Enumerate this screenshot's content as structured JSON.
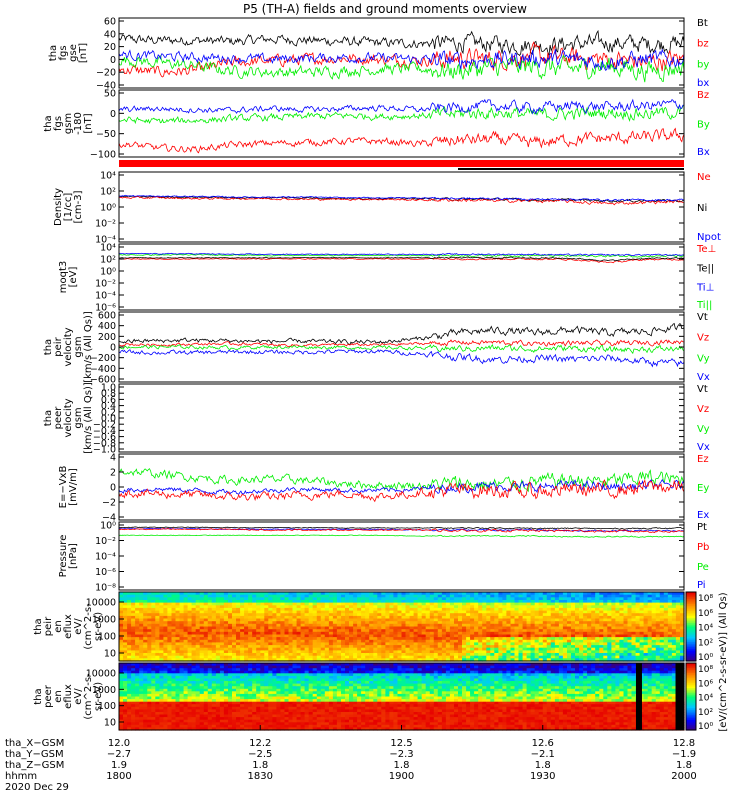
{
  "title": "P5 (TH-A) fields and ground moments overview",
  "colors": {
    "black": "#000000",
    "red": "#ff0000",
    "green": "#00ee00",
    "blue": "#0000ff"
  },
  "chart_data": [
    {
      "type": "line",
      "ylabel": [
        "tha",
        "fgs",
        "gse",
        "[nT]"
      ],
      "yticks": [
        "60",
        "40",
        "20",
        "0",
        "−20",
        "−40"
      ],
      "ylim": [
        -45,
        65
      ],
      "legend": [
        {
          "name": "Bt",
          "color": "#000000"
        },
        {
          "name": "bz",
          "color": "#ff0000"
        },
        {
          "name": "by",
          "color": "#00ee00"
        },
        {
          "name": "bx",
          "color": "#0000ff"
        }
      ],
      "series": [
        {
          "name": "Bt",
          "color": "#000000",
          "base": [
            32,
            30,
            30,
            28,
            32,
            30,
            28,
            26,
            25,
            26,
            24,
            22,
            24,
            26,
            24,
            25
          ],
          "noise": 12
        },
        {
          "name": "bz",
          "color": "#ff0000",
          "base": [
            -15,
            -20,
            -18,
            -5,
            -2,
            0,
            2,
            0,
            -2,
            2,
            0,
            5,
            2,
            0,
            -5,
            0
          ],
          "noise": 14
        },
        {
          "name": "by",
          "color": "#00ee00",
          "base": [
            0,
            -5,
            -10,
            -18,
            -20,
            -20,
            -18,
            -15,
            -15,
            -18,
            -12,
            -12,
            -15,
            -10,
            -18,
            -12
          ],
          "noise": 14
        },
        {
          "name": "bx",
          "color": "#0000ff",
          "base": [
            8,
            5,
            3,
            2,
            0,
            2,
            3,
            2,
            0,
            -2,
            0,
            2,
            0,
            -3,
            0,
            0
          ],
          "noise": 12
        }
      ]
    },
    {
      "type": "line",
      "ylabel": [
        "tha",
        "fgs",
        "gsm",
        "-180",
        "[nT]"
      ],
      "yticks": [
        "50",
        "0",
        "−50",
        "−100"
      ],
      "ylim": [
        -115,
        55
      ],
      "legend": [
        {
          "name": "Bz",
          "color": "#ff0000"
        },
        {
          "name": "By",
          "color": "#00ee00"
        },
        {
          "name": "Bx",
          "color": "#0000ff"
        }
      ],
      "series": [
        {
          "name": "Bz",
          "color": "#ff0000",
          "base": [
            -80,
            -92,
            -95,
            -85,
            -80,
            -78,
            -75,
            -75,
            -82,
            -72,
            -70,
            -80,
            -70,
            -68,
            -65,
            -60
          ],
          "noise": 14
        },
        {
          "name": "By",
          "color": "#00ee00",
          "base": [
            -20,
            -25,
            -22,
            -18,
            -15,
            -12,
            -10,
            -12,
            -10,
            -5,
            -2,
            -8,
            -5,
            -2,
            -5,
            0
          ],
          "noise": 14
        },
        {
          "name": "Bx",
          "color": "#0000ff",
          "base": [
            5,
            8,
            5,
            3,
            8,
            5,
            8,
            10,
            5,
            12,
            15,
            10,
            15,
            12,
            15,
            20
          ],
          "noise": 12
        }
      ]
    },
    {
      "type": "line",
      "ylabel": [
        "Density",
        "[1/cc]",
        "[cm-3]"
      ],
      "yticks": [
        "10⁴",
        "10²",
        "10⁰",
        "10⁻²",
        "10⁻⁴"
      ],
      "ylim": [
        -5,
        4.5
      ],
      "legend": [
        {
          "name": "Ne",
          "color": "#ff0000"
        },
        {
          "name": "Ni",
          "color": "#000000"
        },
        {
          "name": "Npot",
          "color": "#0000ff"
        }
      ],
      "series": [
        {
          "name": "Ni",
          "color": "#000000",
          "base": [
            1.2,
            1.1,
            1.1,
            1.0,
            1.0,
            1.0,
            0.9,
            0.9,
            0.9,
            0.8,
            0.8,
            0.7,
            0.7,
            0.6,
            0.6,
            0.6
          ],
          "noise": 0.15
        },
        {
          "name": "Ne",
          "color": "#ff0000",
          "base": [
            1.0,
            1.0,
            0.9,
            0.9,
            0.9,
            0.8,
            0.8,
            0.8,
            0.7,
            0.7,
            0.6,
            0.6,
            0.5,
            0.2,
            0.4,
            0.5
          ],
          "noise": 0.2
        },
        {
          "name": "Npot",
          "color": "#0000ff",
          "base": [
            1.3,
            1.2,
            1.2,
            1.1,
            1.1,
            1.1,
            1.0,
            1.0,
            1.0,
            0.9,
            0.9,
            0.8,
            0.8,
            0.7,
            0.7,
            0.7
          ],
          "noise": 0.12
        }
      ]
    },
    {
      "type": "line",
      "ylabel": [
        "moqt3",
        "[eV]"
      ],
      "yticks": [
        "10⁴",
        "10²",
        "10⁰",
        "10⁻²",
        "10⁻⁴",
        "10⁻⁶"
      ],
      "ylim": [
        -7,
        4.5
      ],
      "legend": [
        {
          "name": "Te⊥",
          "color": "#ff0000"
        },
        {
          "name": "Te||",
          "color": "#000000"
        },
        {
          "name": "Ti⊥",
          "color": "#0000ff"
        },
        {
          "name": "Ti||",
          "color": "#00ee00"
        }
      ],
      "series": [
        {
          "name": "Ti||",
          "color": "#00ee00",
          "base": [
            2.6,
            2.6,
            2.6,
            2.6,
            2.5,
            2.5,
            2.5,
            2.5,
            2.5,
            2.5,
            2.5,
            2.5,
            2.4,
            2.4,
            2.4,
            2.4
          ],
          "noise": 0.15
        },
        {
          "name": "Ti⊥",
          "color": "#0000ff",
          "base": [
            2.8,
            2.8,
            2.8,
            2.7,
            2.7,
            2.7,
            2.7,
            2.7,
            2.7,
            2.7,
            2.7,
            2.7,
            2.6,
            2.6,
            2.6,
            2.6
          ],
          "noise": 0.12
        },
        {
          "name": "Te⊥",
          "color": "#ff0000",
          "base": [
            1.9,
            1.9,
            1.9,
            1.9,
            1.9,
            1.9,
            1.9,
            1.9,
            1.9,
            1.9,
            1.9,
            1.9,
            1.8,
            1.3,
            1.8,
            1.8
          ],
          "noise": 0.12
        },
        {
          "name": "Te||",
          "color": "#000000",
          "base": [
            2.1,
            2.1,
            2.1,
            2.1,
            2.1,
            2.1,
            2.1,
            2.1,
            2.1,
            2.1,
            2.1,
            2.1,
            2.0,
            1.6,
            2.0,
            2.0
          ],
          "noise": 0.1
        }
      ]
    },
    {
      "type": "line",
      "ylabel": [
        "tha",
        "peir",
        "velocity",
        "gsm",
        "[km/s (All Qs)]"
      ],
      "yticks": [
        "600",
        "400",
        "200",
        "0",
        "−200",
        "−400",
        "−600"
      ],
      "ylim": [
        -620,
        620
      ],
      "legend": [
        {
          "name": "Vt",
          "color": "#000000"
        },
        {
          "name": "Vz",
          "color": "#ff0000"
        },
        {
          "name": "Vy",
          "color": "#00ee00"
        },
        {
          "name": "Vx",
          "color": "#0000ff"
        }
      ],
      "series": [
        {
          "name": "Vt",
          "color": "#000000",
          "base": [
            100,
            110,
            120,
            110,
            100,
            100,
            90,
            90,
            150,
            250,
            300,
            250,
            300,
            250,
            280,
            350
          ],
          "noise": 60
        },
        {
          "name": "Vz",
          "color": "#ff0000",
          "base": [
            50,
            40,
            50,
            60,
            40,
            30,
            40,
            40,
            60,
            80,
            80,
            60,
            70,
            60,
            80,
            100
          ],
          "noise": 40
        },
        {
          "name": "Vy",
          "color": "#00ee00",
          "base": [
            0,
            0,
            0,
            -10,
            0,
            0,
            -10,
            -10,
            -20,
            -30,
            -20,
            -30,
            -20,
            -50,
            -40,
            -30
          ],
          "noise": 50
        },
        {
          "name": "Vx",
          "color": "#0000ff",
          "base": [
            -90,
            -100,
            -100,
            -90,
            -90,
            -90,
            -80,
            -80,
            -120,
            -180,
            -220,
            -200,
            -220,
            -200,
            -260,
            -300
          ],
          "noise": 60
        }
      ]
    },
    {
      "type": "line",
      "ylabel": [
        "tha",
        "peer",
        "velocity",
        "gsm",
        "[km/s (All Qs)]"
      ],
      "yticks": [
        "1.0",
        "0.8",
        "0.6",
        "0.4",
        "0.2",
        "0.0",
        "−0.2",
        "−0.4",
        "−0.6",
        "−0.8",
        "−1.0"
      ],
      "ylim": [
        -1,
        1
      ],
      "legend": [
        {
          "name": "Vt",
          "color": "#000000"
        },
        {
          "name": "Vz",
          "color": "#ff0000"
        },
        {
          "name": "Vy",
          "color": "#00ee00"
        },
        {
          "name": "Vx",
          "color": "#0000ff"
        }
      ],
      "series": []
    },
    {
      "type": "line",
      "ylabel": [
        "E=−VxB",
        "[mV/m]"
      ],
      "yticks": [
        "4",
        "2",
        "0",
        "−2",
        "−4"
      ],
      "ylim": [
        -5,
        5
      ],
      "legend": [
        {
          "name": "Ez",
          "color": "#ff0000"
        },
        {
          "name": "Ey",
          "color": "#00ee00"
        },
        {
          "name": "Ex",
          "color": "#0000ff"
        }
      ],
      "series": [
        {
          "name": "Ey",
          "color": "#00ee00",
          "base": [
            2.5,
            2.0,
            1.5,
            1.0,
            1.2,
            1.0,
            0.5,
            0.3,
            0.2,
            0.5,
            0.3,
            0.8,
            1.0,
            0.8,
            1.5,
            1.0
          ],
          "noise": 1.0
        },
        {
          "name": "Ex",
          "color": "#0000ff",
          "base": [
            -0.5,
            -0.3,
            -0.5,
            -0.8,
            -0.5,
            -0.3,
            -0.5,
            -0.5,
            -0.3,
            0.0,
            0.2,
            0.0,
            0.3,
            0.0,
            0.2,
            0.3
          ],
          "noise": 0.6
        },
        {
          "name": "Ez",
          "color": "#ff0000",
          "base": [
            -0.8,
            -1.0,
            -1.2,
            -1.5,
            -1.5,
            -1.2,
            -1.0,
            -1.5,
            -0.8,
            -0.5,
            -0.5,
            -0.8,
            -0.3,
            -0.5,
            0.0,
            0.0
          ],
          "noise": 1.0
        }
      ]
    },
    {
      "type": "line",
      "ylabel": [
        "Pressure",
        "[nPa]"
      ],
      "yticks": [
        "10⁰",
        "10⁻²",
        "10⁻⁴",
        "10⁻⁶",
        "10⁻⁸"
      ],
      "ylim": [
        -9,
        1.2
      ],
      "legend": [
        {
          "name": "Pt",
          "color": "#000000"
        },
        {
          "name": "Pb",
          "color": "#ff0000"
        },
        {
          "name": "Pe",
          "color": "#00ee00"
        },
        {
          "name": "Pi",
          "color": "#0000ff"
        }
      ],
      "series": [
        {
          "name": "Pe",
          "color": "#00ee00",
          "base": [
            -0.8,
            -0.8,
            -0.8,
            -0.8,
            -0.8,
            -0.8,
            -0.8,
            -0.8,
            -0.9,
            -0.9,
            -0.9,
            -0.9,
            -1.0,
            -1.0,
            -1.0,
            -1.0
          ],
          "noise": 0.08
        },
        {
          "name": "Pi",
          "color": "#0000ff",
          "base": [
            0.2,
            0.2,
            0.2,
            0.1,
            0.1,
            0.1,
            0.1,
            0.1,
            0.0,
            0.0,
            0.0,
            0.0,
            -0.1,
            -0.1,
            -0.1,
            -0.1
          ],
          "noise": 0.1
        },
        {
          "name": "Pb",
          "color": "#ff0000",
          "base": [
            0.1,
            0.1,
            0.1,
            0.1,
            0.0,
            0.0,
            0.0,
            0.0,
            0.0,
            -0.1,
            -0.1,
            -0.1,
            -0.1,
            -0.2,
            -0.2,
            -0.2
          ],
          "noise": 0.15
        },
        {
          "name": "Pt",
          "color": "#000000",
          "base": [
            0.4,
            0.4,
            0.4,
            0.35,
            0.35,
            0.35,
            0.3,
            0.3,
            0.3,
            0.3,
            0.3,
            0.25,
            0.25,
            0.2,
            0.25,
            0.25
          ],
          "noise": 0.08
        }
      ]
    },
    {
      "type": "heatmap",
      "ylabel": [
        "tha",
        "peir",
        "en",
        "eflux",
        "eV/",
        "(cm^2-s-",
        "sr-eV)"
      ],
      "yticks": [
        "10000",
        "1000",
        "100",
        "10"
      ],
      "ylim_log": [
        0.9,
        4.15
      ],
      "colorbar": {
        "ticks": [
          "10⁸",
          "10⁶",
          "10⁴",
          "10²",
          "10⁰"
        ],
        "range_log": [
          0,
          8
        ]
      }
    },
    {
      "type": "heatmap",
      "ylabel": [
        "tha",
        "peer",
        "en",
        "eflux",
        "eV/",
        "(cm^2-s-",
        "sr-eV)"
      ],
      "yticks": [
        "10000",
        "1000",
        "100",
        "10"
      ],
      "ylim_log": [
        0.7,
        4.4
      ],
      "colorbar": {
        "ticks": [
          "10⁸",
          "10⁶",
          "10⁴",
          "10²",
          "10⁰"
        ],
        "range_log": [
          0,
          8
        ]
      }
    }
  ],
  "colorbar_label": "[eV/(cm^2-s-sr-eV)] (All Qs)",
  "xaxis": {
    "ticks_log": [
      12.0,
      12.2,
      12.5,
      12.6,
      12.8
    ],
    "rows": [
      {
        "label": "tha_X−GSM",
        "values": [
          "12.0",
          "12.2",
          "12.5",
          "12.6",
          "12.8"
        ]
      },
      {
        "label": "tha_Y−GSM",
        "values": [
          "−2.7",
          "−2.5",
          "−2.3",
          "−2.1",
          "−1.9"
        ]
      },
      {
        "label": "tha_Z−GSM",
        "values": [
          "1.9",
          "1.8",
          "1.8",
          "1.8",
          "1.8"
        ]
      },
      {
        "label": "hhmm",
        "values": [
          "1800",
          "1830",
          "1900",
          "1930",
          "2000"
        ]
      }
    ],
    "date": "2020 Dec 29"
  }
}
